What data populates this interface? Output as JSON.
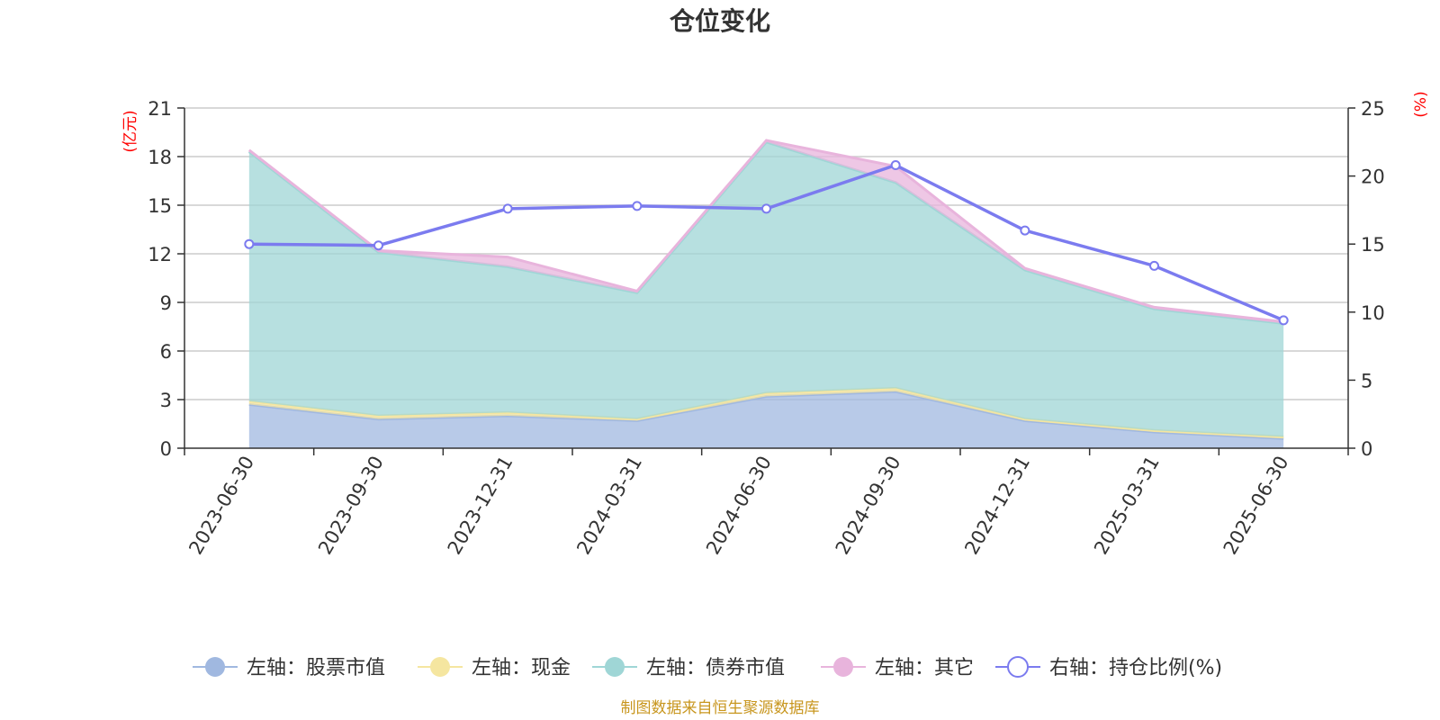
{
  "chart_data": {
    "type": "area",
    "title": "仓位变化",
    "categories": [
      "2023-06-30",
      "2023-09-30",
      "2023-12-31",
      "2024-03-31",
      "2024-06-30",
      "2024-09-30",
      "2024-12-31",
      "2025-03-31",
      "2025-06-30"
    ],
    "y_left": {
      "unit": "(亿元)",
      "min": 0,
      "max": 21,
      "ticks": [
        "0",
        "3",
        "6",
        "9",
        "12",
        "15",
        "18",
        "21"
      ]
    },
    "y_right": {
      "unit": "(%)",
      "min": 0,
      "max": 25,
      "ticks": [
        "0",
        "5",
        "10",
        "15",
        "20",
        "25"
      ]
    },
    "stacked": true,
    "series": [
      {
        "name": "左轴：股票市值",
        "axis": "left",
        "color": "#a0b8e0",
        "values": [
          2.7,
          1.8,
          2.0,
          1.7,
          3.2,
          3.5,
          1.7,
          1.0,
          0.6
        ]
      },
      {
        "name": "左轴：现金",
        "axis": "left",
        "color": "#f5e6a0",
        "values": [
          0.2,
          0.2,
          0.2,
          0.1,
          0.2,
          0.2,
          0.1,
          0.1,
          0.1
        ]
      },
      {
        "name": "左轴：债券市值",
        "axis": "left",
        "color": "#9fd6d6",
        "values": [
          15.4,
          10.1,
          9.0,
          7.8,
          15.5,
          12.7,
          9.2,
          7.5,
          7.0
        ]
      },
      {
        "name": "左轴：其它",
        "axis": "left",
        "color": "#e8b4dc",
        "values": [
          0.1,
          0.1,
          0.6,
          0.1,
          0.1,
          1.0,
          0.1,
          0.1,
          0.1
        ]
      },
      {
        "name": "右轴：持仓比例(%)",
        "axis": "right",
        "color": "#7b7bef",
        "type": "line",
        "values": [
          15.0,
          14.9,
          17.6,
          17.8,
          17.6,
          20.8,
          16.0,
          13.4,
          9.4
        ]
      }
    ],
    "legend": "bottom",
    "grid": true
  },
  "source": "制图数据来自恒生聚源数据库"
}
